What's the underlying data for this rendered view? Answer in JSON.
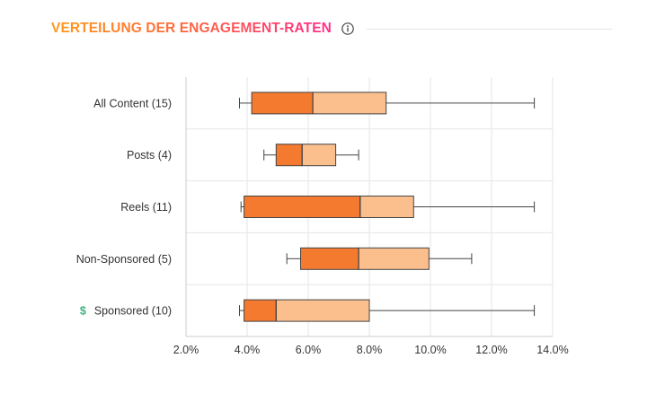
{
  "header": {
    "title": "VERTEILUNG DER ENGAGEMENT-RATEN",
    "info_icon": "info-circle-icon"
  },
  "colors": {
    "lower_box": "#f47a30",
    "upper_box": "#fbbf8e",
    "stroke": "#444444",
    "grid": "#e6e6e6",
    "sponsored_icon": "#3fb27f"
  },
  "chart_data": {
    "type": "boxplot",
    "orientation": "horizontal",
    "xlim": [
      2.0,
      14.0
    ],
    "x_ticks": [
      2,
      4,
      6,
      8,
      10,
      12,
      14
    ],
    "x_tick_labels": [
      "2.0%",
      "4.0%",
      "6.0%",
      "8.0%",
      "10.0%",
      "12.0%",
      "14.0%"
    ],
    "grid": "vertical",
    "categories": [
      {
        "label": "All Content (15)",
        "icon": null,
        "min": 3.75,
        "q1": 4.15,
        "median": 6.15,
        "q3": 8.55,
        "max": 13.4
      },
      {
        "label": "Posts (4)",
        "icon": null,
        "min": 4.55,
        "q1": 4.95,
        "median": 5.8,
        "q3": 6.9,
        "max": 7.65
      },
      {
        "label": "Reels (11)",
        "icon": null,
        "min": 3.8,
        "q1": 3.9,
        "median": 7.7,
        "q3": 9.45,
        "max": 13.4
      },
      {
        "label": "Non-Sponsored (5)",
        "icon": null,
        "min": 5.3,
        "q1": 5.75,
        "median": 7.65,
        "q3": 9.95,
        "max": 11.35
      },
      {
        "label": "Sponsored (10)",
        "icon": "$",
        "min": 3.75,
        "q1": 3.9,
        "median": 4.95,
        "q3": 8.0,
        "max": 13.4
      }
    ]
  }
}
